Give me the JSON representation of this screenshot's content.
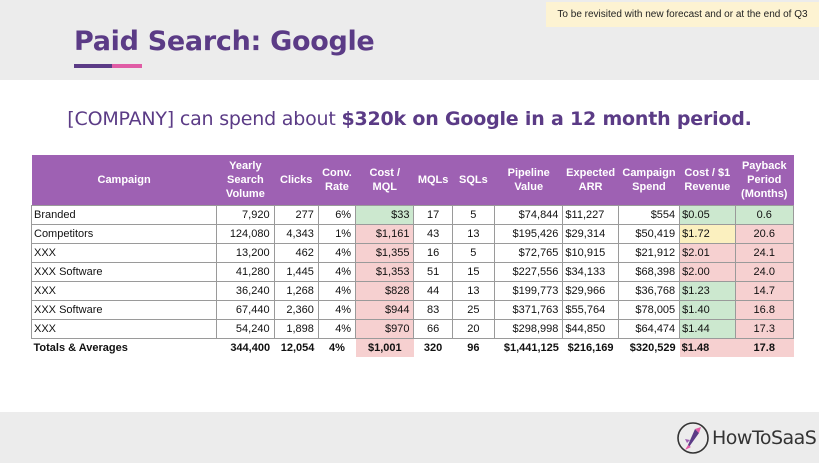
{
  "note": "To be revisited with new forecast and or at the end of Q3",
  "title": "Paid Search: Google",
  "subtitle": {
    "prefix": "[COMPANY] can spend about ",
    "bold": "$320k on Google in a 12 month period."
  },
  "table": {
    "headers": [
      "Campaign",
      "Yearly Search Volume",
      "Clicks",
      "Conv. Rate",
      "Cost / MQL",
      "MQLs",
      "SQLs",
      "Pipeline Value",
      "Expected ARR",
      "Campaign Spend",
      "Cost / $1 Revenue",
      "Payback Period (Months)"
    ],
    "rows": [
      {
        "campaign": "Branded",
        "volume": "7,920",
        "clicks": "277",
        "conv": "6%",
        "cost_mql": "$33",
        "mqls": "17",
        "sqls": "5",
        "pipeline": "$74,844",
        "arr": "$11,227",
        "spend": "$554",
        "cost_rev": "$0.05",
        "payback": "0.6"
      },
      {
        "campaign": "Competitors",
        "volume": "124,080",
        "clicks": "4,343",
        "conv": "1%",
        "cost_mql": "$1,161",
        "mqls": "43",
        "sqls": "13",
        "pipeline": "$195,426",
        "arr": "$29,314",
        "spend": "$50,419",
        "cost_rev": "$1.72",
        "payback": "20.6"
      },
      {
        "campaign": "XXX",
        "volume": "13,200",
        "clicks": "462",
        "conv": "4%",
        "cost_mql": "$1,355",
        "mqls": "16",
        "sqls": "5",
        "pipeline": "$72,765",
        "arr": "$10,915",
        "spend": "$21,912",
        "cost_rev": "$2.01",
        "payback": "24.1"
      },
      {
        "campaign": "XXX Software",
        "volume": "41,280",
        "clicks": "1,445",
        "conv": "4%",
        "cost_mql": "$1,353",
        "mqls": "51",
        "sqls": "15",
        "pipeline": "$227,556",
        "arr": "$34,133",
        "spend": "$68,398",
        "cost_rev": "$2.00",
        "payback": "24.0"
      },
      {
        "campaign": "XXX",
        "volume": "36,240",
        "clicks": "1,268",
        "conv": "4%",
        "cost_mql": "$828",
        "mqls": "44",
        "sqls": "13",
        "pipeline": "$199,773",
        "arr": "$29,966",
        "spend": "$36,768",
        "cost_rev": "$1.23",
        "payback": "14.7"
      },
      {
        "campaign": "XXX Software",
        "volume": "67,440",
        "clicks": "2,360",
        "conv": "4%",
        "cost_mql": "$944",
        "mqls": "83",
        "sqls": "25",
        "pipeline": "$371,763",
        "arr": "$55,764",
        "spend": "$78,005",
        "cost_rev": "$1.40",
        "payback": "16.8"
      },
      {
        "campaign": "XXX",
        "volume": "54,240",
        "clicks": "1,898",
        "conv": "4%",
        "cost_mql": "$970",
        "mqls": "66",
        "sqls": "20",
        "pipeline": "$298,998",
        "arr": "$44,850",
        "spend": "$64,474",
        "cost_rev": "$1.44",
        "payback": "17.3"
      }
    ],
    "totals": {
      "campaign": "Totals & Averages",
      "volume": "344,400",
      "clicks": "12,054",
      "conv": "4%",
      "cost_mql": "$1,001",
      "mqls": "320",
      "sqls": "96",
      "pipeline": "$1,441,125",
      "arr": "$216,169",
      "spend": "$320,529",
      "cost_rev": "$1.48",
      "payback": "17.8"
    }
  },
  "logo": {
    "text": "HowToSaaS",
    "icon": "rocket-logo-icon"
  },
  "colors": {
    "purple": "#5b3b86",
    "header": "#9e61b3",
    "green": "#cce8cf",
    "red": "#f6d0d0",
    "yellow": "#fbf0bf",
    "pink": "#e05ca5"
  }
}
